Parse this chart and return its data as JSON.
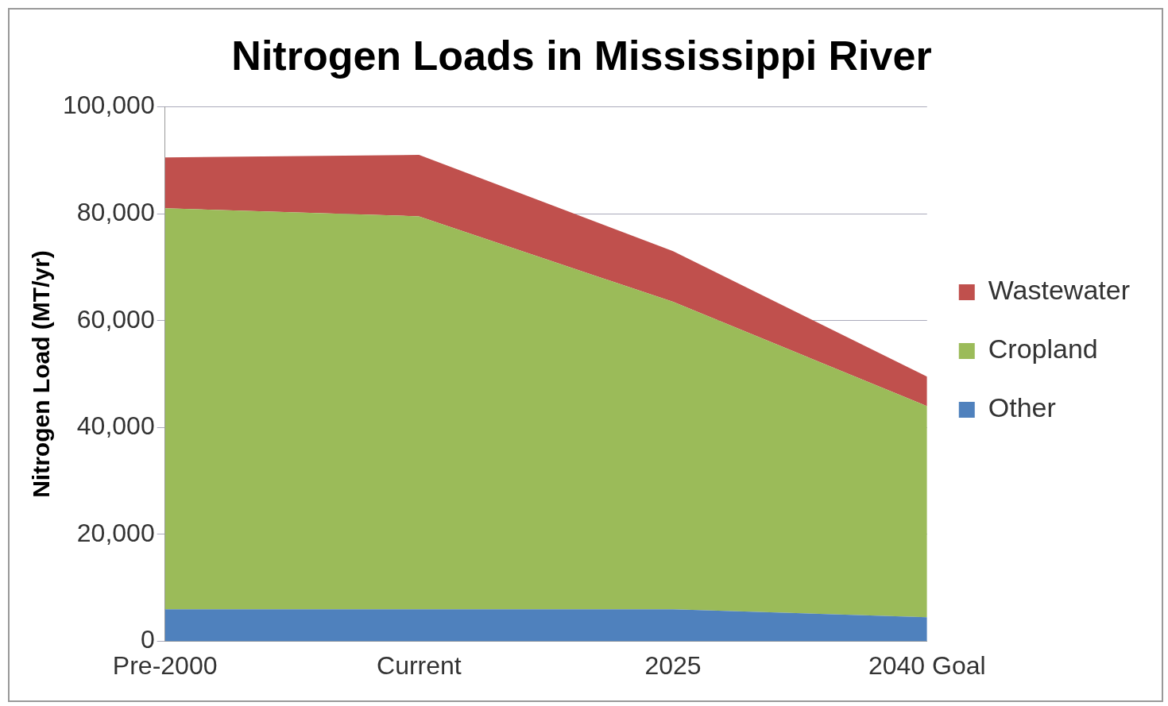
{
  "chart_data": {
    "type": "area",
    "title": "Nitrogen Loads in Mississippi River",
    "ylabel": "Nitrogen Load (MT/yr)",
    "categories": [
      "Pre-2000",
      "Current",
      "2025",
      "2040 Goal"
    ],
    "stacked": true,
    "series": [
      {
        "name": "Other",
        "color": "#4f81bd",
        "values": [
          6000,
          6000,
          6000,
          4500
        ]
      },
      {
        "name": "Cropland",
        "color": "#9bbb59",
        "values": [
          75000,
          73500,
          57500,
          39500
        ]
      },
      {
        "name": "Wastewater",
        "color": "#c0504d",
        "values": [
          9500,
          11500,
          9500,
          5500
        ]
      }
    ],
    "ylim": [
      0,
      100000
    ],
    "yticks": [
      0,
      {
        "value": 20000,
        "label": "20,000"
      },
      {
        "value": 40000,
        "label": "40,000"
      },
      {
        "value": 60000,
        "label": "60,000"
      },
      {
        "value": 80000,
        "label": "80,000"
      },
      {
        "value": 100000,
        "label": "100,000"
      }
    ],
    "grid": "y",
    "legend": "right"
  }
}
